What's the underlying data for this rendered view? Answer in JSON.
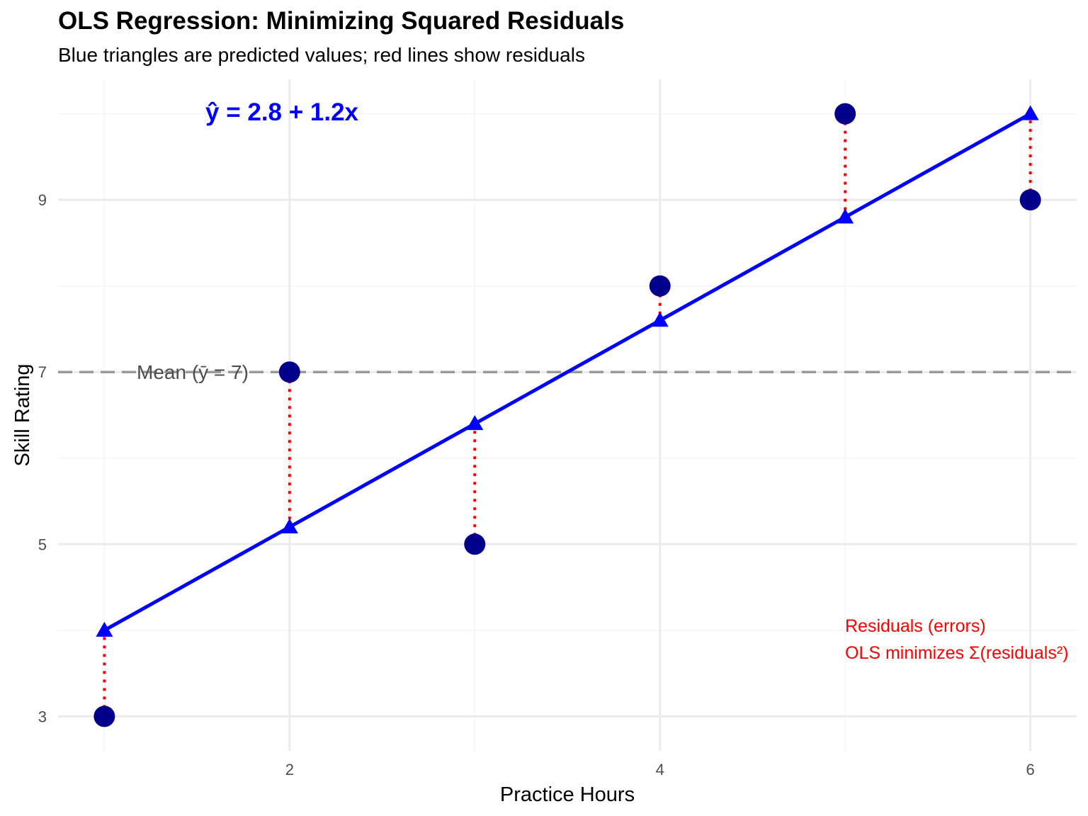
{
  "chart_data": {
    "type": "scatter",
    "title": "OLS Regression: Minimizing Squared Residuals",
    "subtitle": "Blue triangles are predicted values; red lines show residuals",
    "xlabel": "Practice Hours",
    "ylabel": "Skill Rating",
    "xlim": [
      0.75,
      6.25
    ],
    "ylim": [
      2.6,
      10.4
    ],
    "x_ticks": [
      2,
      4,
      6
    ],
    "y_ticks": [
      3,
      5,
      7,
      9
    ],
    "grid": true,
    "points": [
      {
        "x": 1,
        "y": 3
      },
      {
        "x": 2,
        "y": 7
      },
      {
        "x": 3,
        "y": 5
      },
      {
        "x": 4,
        "y": 8
      },
      {
        "x": 5,
        "y": 10
      },
      {
        "x": 6,
        "y": 9
      }
    ],
    "regression": {
      "intercept": 2.8,
      "slope": 1.2,
      "equation": "ŷ = 2.8 + 1.2x"
    },
    "mean": {
      "value": 7,
      "label": "Mean (ȳ = 7)"
    },
    "annotations": {
      "residuals_line1": "Residuals (errors)",
      "residuals_line2": "OLS minimizes Σ(residuals²)"
    },
    "colors": {
      "points": "#00008B",
      "line": "#0000FF",
      "residual": "#FF0000",
      "mean": "#999999",
      "grid_major": "#EBEBEB",
      "grid_minor": "#F4F4F4",
      "text": "#4D4D4D"
    }
  }
}
